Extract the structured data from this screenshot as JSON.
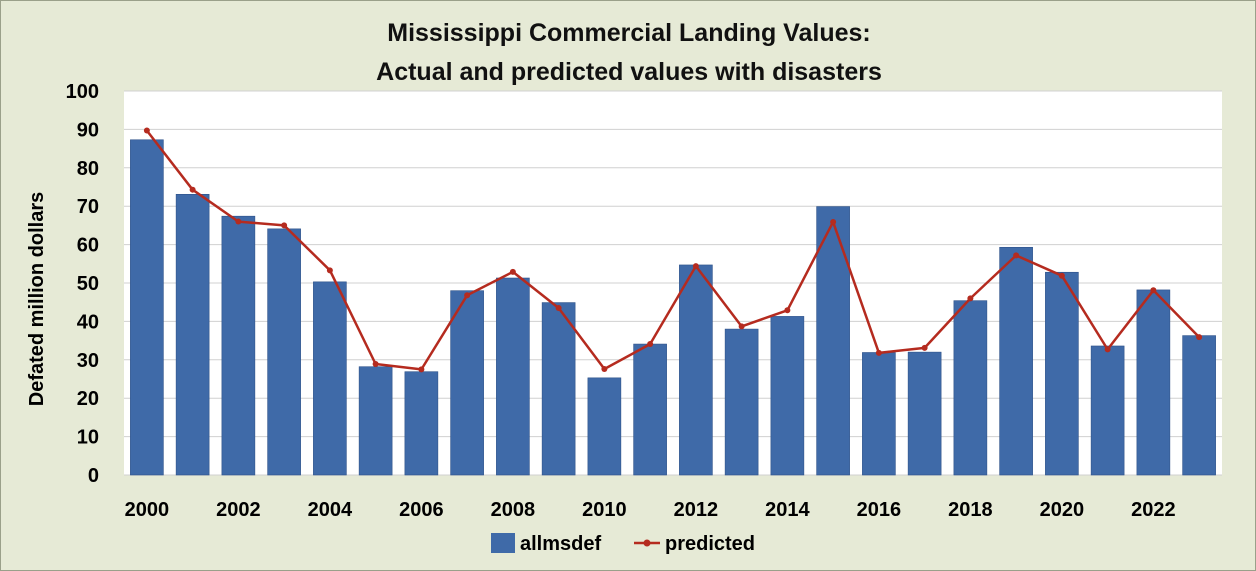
{
  "chart_data": {
    "type": "bar",
    "title_lines": [
      "Mississippi Commercial Landing Values:",
      "Actual and predicted values with disasters"
    ],
    "ylabel": "Defated million dollars",
    "xlabel": "",
    "ylim": [
      0,
      100
    ],
    "y_ticks": [
      0,
      10,
      20,
      30,
      40,
      50,
      60,
      70,
      80,
      90,
      100
    ],
    "x_tick_labels": [
      "2000",
      "2002",
      "2004",
      "2006",
      "2008",
      "2010",
      "2012",
      "2014",
      "2016",
      "2018",
      "2020",
      "2022"
    ],
    "categories": [
      2000,
      2001,
      2002,
      2003,
      2004,
      2005,
      2006,
      2007,
      2008,
      2009,
      2010,
      2011,
      2012,
      2013,
      2014,
      2015,
      2016,
      2017,
      2018,
      2019,
      2020,
      2021,
      2022,
      2023
    ],
    "grid": true,
    "legend_position": "bottom",
    "series": [
      {
        "name": "allmsdef",
        "kind": "bar",
        "color": "#3f6aa8",
        "values": [
          87.3,
          73.1,
          67.4,
          64.1,
          50.3,
          28.2,
          26.9,
          48.0,
          51.3,
          44.9,
          25.3,
          34.1,
          54.7,
          38.0,
          41.3,
          69.9,
          31.9,
          32.0,
          45.4,
          59.3,
          52.8,
          33.6,
          48.2,
          36.3
        ]
      },
      {
        "name": "predicted",
        "kind": "line",
        "color": "#b52b1f",
        "values": [
          89.7,
          74.3,
          66.0,
          65.0,
          53.3,
          28.9,
          27.5,
          46.8,
          52.9,
          43.5,
          27.6,
          34.1,
          54.4,
          38.7,
          42.9,
          65.9,
          31.8,
          33.1,
          46.0,
          57.2,
          51.9,
          32.7,
          48.1,
          35.9
        ]
      }
    ]
  }
}
